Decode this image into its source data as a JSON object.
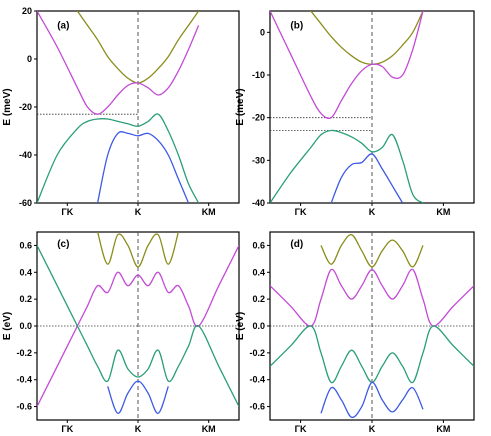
{
  "colors": {
    "olive": "#8c8c1c",
    "magenta": "#c34bd6",
    "teal": "#2a9e7a",
    "blue": "#3c5ae6"
  },
  "chart_data": [
    {
      "type": "line",
      "panel_label": "(a)",
      "ylabel": "E (meV)",
      "ylim": [
        -60,
        20
      ],
      "yticks": [
        "20",
        "0",
        "-20",
        "-40",
        "-60"
      ],
      "xticks": [
        "ΓK",
        "K",
        "KM"
      ],
      "x": [
        -1,
        -0.8,
        -0.6,
        -0.5,
        -0.4,
        -0.3,
        -0.2,
        -0.1,
        0,
        0.1,
        0.2,
        0.3,
        0.4,
        0.5,
        0.6,
        0.8,
        1
      ],
      "series": [
        {
          "color": "olive",
          "values": [
            null,
            null,
            20,
            14,
            8,
            1,
            -4,
            -8,
            -10,
            -8,
            -4,
            1,
            8,
            14,
            20,
            null,
            null
          ]
        },
        {
          "color": "magenta",
          "values": [
            20,
            5,
            -12,
            -20,
            -23,
            -20,
            -15,
            -11,
            -10,
            -12,
            -15,
            -12,
            -5,
            4,
            14,
            null,
            null
          ]
        },
        {
          "color": "teal",
          "values": [
            -60,
            -40,
            -29,
            -26,
            -25,
            -25,
            -26,
            -27,
            -28,
            -26,
            -23,
            -30,
            -40,
            -52,
            -60,
            null,
            null
          ]
        },
        {
          "color": "blue",
          "values": [
            null,
            null,
            null,
            null,
            -60,
            -40,
            -31,
            -31,
            -32,
            -31,
            -34,
            -40,
            -50,
            -60,
            null,
            null,
            null
          ]
        }
      ],
      "reference_lines": [
        {
          "axis": "y",
          "value": -23
        }
      ]
    },
    {
      "type": "line",
      "panel_label": "(b)",
      "ylabel": "E (meV)",
      "ylim": [
        -40,
        5
      ],
      "yticks": [
        "0",
        "-10",
        "-20",
        "-30",
        "-40"
      ],
      "xticks": [
        "ΓK",
        "K",
        "KM"
      ],
      "x": [
        -1,
        -0.8,
        -0.6,
        -0.5,
        -0.4,
        -0.3,
        -0.2,
        -0.1,
        0,
        0.1,
        0.2,
        0.3,
        0.4,
        0.5,
        0.6,
        0.8,
        1
      ],
      "series": [
        {
          "color": "olive",
          "values": [
            null,
            null,
            5,
            2,
            -1,
            -3.5,
            -5.5,
            -7,
            -7.5,
            -7,
            -5.5,
            -3,
            0,
            5,
            null,
            null,
            null
          ]
        },
        {
          "color": "magenta",
          "values": [
            5,
            -5,
            -15,
            -19,
            -20,
            -16,
            -12,
            -9,
            -7.5,
            -8,
            -10.5,
            -10,
            -4,
            5,
            null,
            null,
            null
          ]
        },
        {
          "color": "teal",
          "values": [
            -40,
            -33,
            -27,
            -24,
            -23,
            -23.5,
            -24.5,
            -26,
            -28,
            -27,
            -24,
            -30,
            -38,
            -40,
            null,
            null,
            null
          ]
        },
        {
          "color": "blue",
          "values": [
            null,
            null,
            null,
            null,
            -40,
            -34,
            -31,
            -30.5,
            -28.5,
            -32,
            -36,
            -40,
            null,
            null,
            null,
            null,
            null
          ]
        }
      ],
      "reference_lines": [
        {
          "axis": "y",
          "value": -20
        },
        {
          "axis": "y",
          "value": -23
        }
      ]
    },
    {
      "type": "line",
      "panel_label": "(c)",
      "ylabel": "E (eV)",
      "ylim": [
        -0.7,
        0.7
      ],
      "yticks": [
        "0.6",
        "0.4",
        "0.2",
        "0.0",
        "-0.2",
        "-0.4",
        "-0.6"
      ],
      "xticks": [
        "ΓK",
        "K",
        "KM"
      ],
      "x": [
        -1,
        -0.8,
        -0.6,
        -0.5,
        -0.4,
        -0.3,
        -0.2,
        -0.1,
        0,
        0.1,
        0.2,
        0.3,
        0.4,
        0.5,
        0.6,
        0.8,
        1
      ],
      "series": [
        {
          "color": "olive",
          "values": [
            null,
            null,
            null,
            null,
            0.7,
            0.46,
            0.68,
            0.6,
            0.44,
            0.6,
            0.68,
            0.46,
            0.7,
            null,
            null,
            null,
            null
          ]
        },
        {
          "color": "magenta",
          "values": [
            -0.6,
            -0.3,
            0.0,
            0.15,
            0.3,
            0.25,
            0.4,
            0.3,
            0.38,
            0.3,
            0.4,
            0.25,
            0.3,
            0.15,
            0.0,
            0.3,
            0.6
          ]
        },
        {
          "color": "teal",
          "values": [
            0.6,
            0.3,
            0.0,
            -0.15,
            -0.3,
            -0.41,
            -0.18,
            -0.32,
            -0.38,
            -0.32,
            -0.18,
            -0.41,
            -0.3,
            -0.15,
            0.0,
            -0.3,
            -0.6
          ]
        },
        {
          "color": "blue",
          "values": [
            null,
            null,
            null,
            null,
            null,
            -0.45,
            -0.65,
            -0.5,
            -0.41,
            -0.5,
            -0.65,
            -0.45,
            null,
            null,
            null,
            null,
            null
          ]
        }
      ],
      "reference_lines": [
        {
          "axis": "y",
          "value": 0
        }
      ]
    },
    {
      "type": "line",
      "panel_label": "(d)",
      "ylabel": "E (eV)",
      "ylim": [
        -0.7,
        0.7
      ],
      "yticks": [
        "0.6",
        "0.4",
        "0.2",
        "0.0",
        "-0.2",
        "-0.4",
        "-0.6"
      ],
      "xticks": [
        "ΓK",
        "K",
        "KM"
      ],
      "x": [
        -1,
        -0.8,
        -0.6,
        -0.5,
        -0.4,
        -0.3,
        -0.2,
        -0.1,
        0,
        0.1,
        0.2,
        0.3,
        0.4,
        0.5,
        0.6,
        0.8,
        1
      ],
      "series": [
        {
          "color": "olive",
          "values": [
            null,
            null,
            null,
            0.6,
            0.46,
            0.6,
            0.68,
            0.56,
            0.44,
            0.56,
            0.64,
            0.56,
            0.44,
            0.6,
            null,
            null,
            null
          ]
        },
        {
          "color": "magenta",
          "values": [
            0.3,
            0.15,
            0.0,
            0.2,
            0.42,
            0.3,
            0.2,
            0.3,
            0.42,
            0.3,
            0.2,
            0.3,
            0.42,
            0.2,
            0.0,
            0.15,
            0.3
          ]
        },
        {
          "color": "teal",
          "values": [
            -0.3,
            -0.15,
            0.0,
            -0.2,
            -0.42,
            -0.3,
            -0.18,
            -0.3,
            -0.42,
            -0.3,
            -0.2,
            -0.3,
            -0.42,
            -0.2,
            0.0,
            -0.15,
            -0.3
          ]
        },
        {
          "color": "blue",
          "values": [
            null,
            null,
            null,
            -0.65,
            -0.46,
            -0.55,
            -0.68,
            -0.6,
            -0.42,
            -0.55,
            -0.64,
            -0.55,
            -0.46,
            -0.62,
            null,
            null,
            null
          ]
        }
      ],
      "reference_lines": [
        {
          "axis": "y",
          "value": 0
        }
      ]
    }
  ]
}
